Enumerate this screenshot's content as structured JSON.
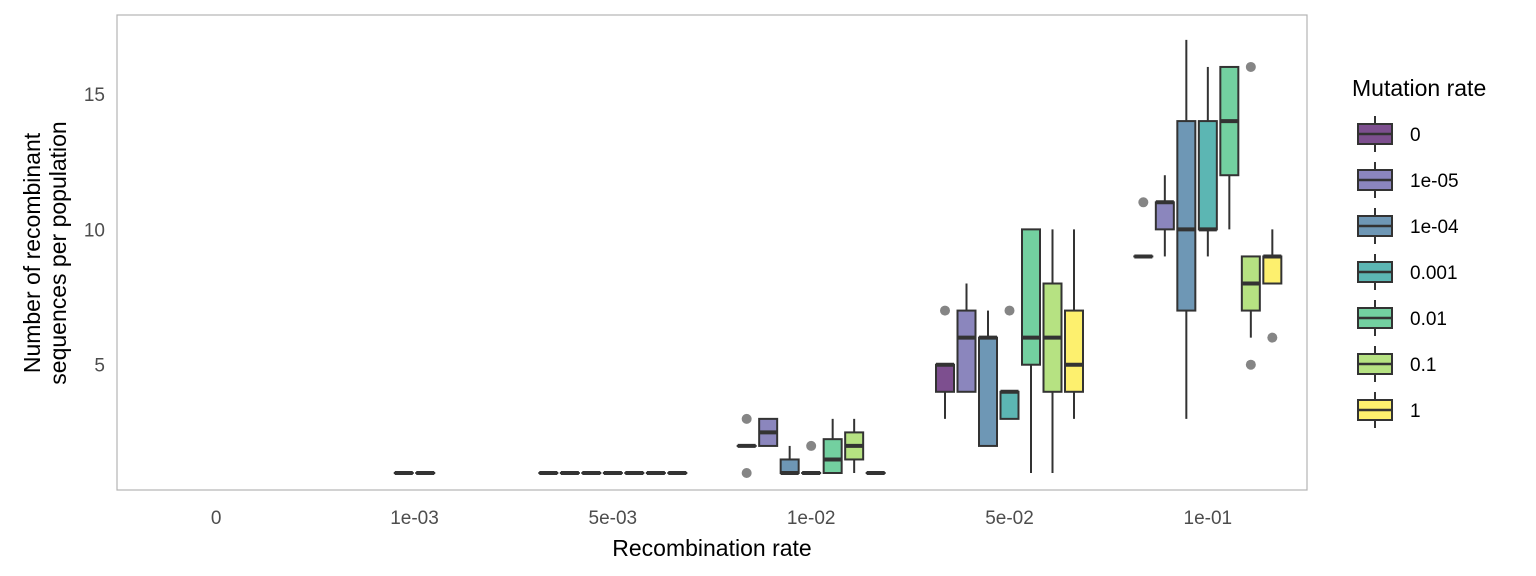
{
  "chart_data": {
    "type": "boxplot",
    "title": "",
    "xlabel": "Recombination rate",
    "ylabel_lines": [
      "Number of recombinant",
      "sequences per population"
    ],
    "categories": [
      "0",
      "1e-03",
      "5e-03",
      "1e-02",
      "5e-02",
      "1e-01"
    ],
    "yticks": [
      5,
      10,
      15
    ],
    "ylim": [
      0.2,
      17.6
    ],
    "grid": false,
    "legend": {
      "title": "Mutation rate",
      "position": "right",
      "items": [
        "0",
        "1e-05",
        "1e-04",
        "0.001",
        "0.01",
        "0.1",
        "1"
      ]
    },
    "colors": [
      "#7d4f8f",
      "#8b86bd",
      "#6e97b5",
      "#5cb6b3",
      "#73d0a0",
      "#b6e282",
      "#fdf06e"
    ],
    "series": [
      {
        "name": "0",
        "boxes": [
          {
            "category": "1e-03",
            "q1": 1,
            "median": 1,
            "q3": 1,
            "whisker_low": 1,
            "whisker_high": 1,
            "outliers": []
          },
          {
            "category": "5e-03",
            "q1": 1,
            "median": 1,
            "q3": 1,
            "whisker_low": 1,
            "whisker_high": 1,
            "outliers": []
          },
          {
            "category": "1e-02",
            "q1": 2,
            "median": 2,
            "q3": 2,
            "whisker_low": 2,
            "whisker_high": 2,
            "outliers": [
              1,
              3
            ]
          },
          {
            "category": "5e-02",
            "q1": 4,
            "median": 5,
            "q3": 5,
            "whisker_low": 3,
            "whisker_high": 5,
            "outliers": [
              7
            ]
          },
          {
            "category": "1e-01",
            "q1": 9,
            "median": 9,
            "q3": 9,
            "whisker_low": 9,
            "whisker_high": 9,
            "outliers": [
              11
            ]
          }
        ]
      },
      {
        "name": "1e-05",
        "boxes": [
          {
            "category": "1e-03",
            "q1": 1,
            "median": 1,
            "q3": 1,
            "whisker_low": 1,
            "whisker_high": 1,
            "outliers": []
          },
          {
            "category": "5e-03",
            "q1": 1,
            "median": 1,
            "q3": 1,
            "whisker_low": 1,
            "whisker_high": 1,
            "outliers": []
          },
          {
            "category": "1e-02",
            "q1": 2,
            "median": 2.5,
            "q3": 3,
            "whisker_low": 2,
            "whisker_high": 3,
            "outliers": []
          },
          {
            "category": "5e-02",
            "q1": 4,
            "median": 6,
            "q3": 7,
            "whisker_low": 4,
            "whisker_high": 8,
            "outliers": []
          },
          {
            "category": "1e-01",
            "q1": 10,
            "median": 11,
            "q3": 11,
            "whisker_low": 9,
            "whisker_high": 12,
            "outliers": []
          }
        ]
      },
      {
        "name": "1e-04",
        "boxes": [
          {
            "category": "5e-03",
            "q1": 1,
            "median": 1,
            "q3": 1,
            "whisker_low": 1,
            "whisker_high": 1,
            "outliers": []
          },
          {
            "category": "1e-02",
            "q1": 1,
            "median": 1,
            "q3": 1.5,
            "whisker_low": 1,
            "whisker_high": 2,
            "outliers": []
          },
          {
            "category": "5e-02",
            "q1": 2,
            "median": 6,
            "q3": 6,
            "whisker_low": 2,
            "whisker_high": 7,
            "outliers": []
          },
          {
            "category": "1e-01",
            "q1": 7,
            "median": 10,
            "q3": 14,
            "whisker_low": 3,
            "whisker_high": 17,
            "outliers": []
          }
        ]
      },
      {
        "name": "0.001",
        "boxes": [
          {
            "category": "5e-03",
            "q1": 1,
            "median": 1,
            "q3": 1,
            "whisker_low": 1,
            "whisker_high": 1,
            "outliers": []
          },
          {
            "category": "1e-02",
            "q1": 1,
            "median": 1,
            "q3": 1,
            "whisker_low": 1,
            "whisker_high": 1,
            "outliers": [
              2
            ]
          },
          {
            "category": "5e-02",
            "q1": 3,
            "median": 4,
            "q3": 4,
            "whisker_low": 3,
            "whisker_high": 4,
            "outliers": [
              7
            ]
          },
          {
            "category": "1e-01",
            "q1": 10,
            "median": 10,
            "q3": 14,
            "whisker_low": 9,
            "whisker_high": 16,
            "outliers": []
          }
        ]
      },
      {
        "name": "0.01",
        "boxes": [
          {
            "category": "5e-03",
            "q1": 1,
            "median": 1,
            "q3": 1,
            "whisker_low": 1,
            "whisker_high": 1,
            "outliers": []
          },
          {
            "category": "1e-02",
            "q1": 1,
            "median": 1.5,
            "q3": 2.25,
            "whisker_low": 1,
            "whisker_high": 3,
            "outliers": []
          },
          {
            "category": "5e-02",
            "q1": 5,
            "median": 6,
            "q3": 10,
            "whisker_low": 1,
            "whisker_high": 10,
            "outliers": []
          },
          {
            "category": "1e-01",
            "q1": 12,
            "median": 14,
            "q3": 16,
            "whisker_low": 10,
            "whisker_high": 16,
            "outliers": []
          }
        ]
      },
      {
        "name": "0.1",
        "boxes": [
          {
            "category": "5e-03",
            "q1": 1,
            "median": 1,
            "q3": 1,
            "whisker_low": 1,
            "whisker_high": 1,
            "outliers": []
          },
          {
            "category": "1e-02",
            "q1": 1.5,
            "median": 2,
            "q3": 2.5,
            "whisker_low": 1,
            "whisker_high": 3,
            "outliers": []
          },
          {
            "category": "5e-02",
            "q1": 4,
            "median": 6,
            "q3": 8,
            "whisker_low": 1,
            "whisker_high": 10,
            "outliers": []
          },
          {
            "category": "1e-01",
            "q1": 7,
            "median": 8,
            "q3": 9,
            "whisker_low": 6,
            "whisker_high": 9,
            "outliers": [
              5,
              16
            ]
          }
        ]
      },
      {
        "name": "1",
        "boxes": [
          {
            "category": "5e-03",
            "q1": 1,
            "median": 1,
            "q3": 1,
            "whisker_low": 1,
            "whisker_high": 1,
            "outliers": []
          },
          {
            "category": "1e-02",
            "q1": 1,
            "median": 1,
            "q3": 1,
            "whisker_low": 1,
            "whisker_high": 1,
            "outliers": []
          },
          {
            "category": "5e-02",
            "q1": 4,
            "median": 5,
            "q3": 7,
            "whisker_low": 3,
            "whisker_high": 10,
            "outliers": []
          },
          {
            "category": "1e-01",
            "q1": 8,
            "median": 9,
            "q3": 9,
            "whisker_low": 8,
            "whisker_high": 10,
            "outliers": [
              6
            ]
          }
        ]
      }
    ]
  }
}
